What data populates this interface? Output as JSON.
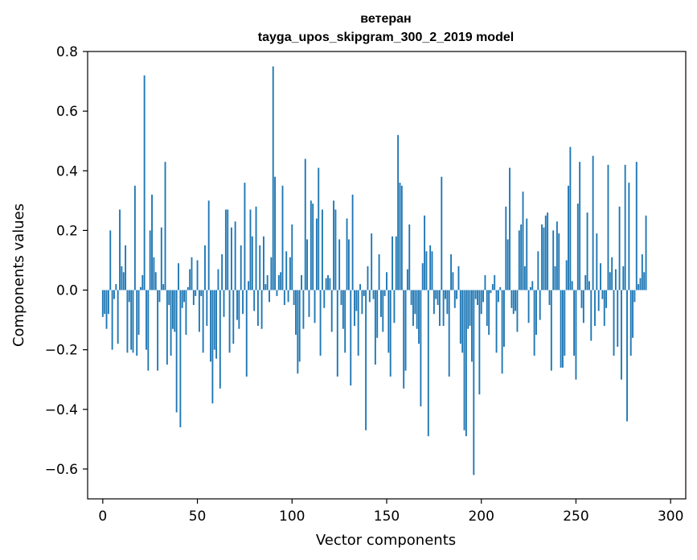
{
  "chart_data": {
    "type": "bar",
    "title_line1": "ветеран",
    "title_line2": "tayga_upos_skipgram_300_2_2019 model",
    "xlabel": "Vector components",
    "ylabel": "Components values",
    "xlim": [
      -8,
      308
    ],
    "ylim": [
      -0.7,
      0.8
    ],
    "xticks": [
      0,
      50,
      100,
      150,
      200,
      250,
      300
    ],
    "xtick_labels": [
      "0",
      "50",
      "100",
      "150",
      "200",
      "250",
      "300"
    ],
    "yticks": [
      -0.6,
      -0.4,
      -0.2,
      0.0,
      0.2,
      0.4,
      0.6,
      0.8
    ],
    "ytick_labels": [
      "−0.6",
      "−0.4",
      "−0.2",
      "0.0",
      "0.2",
      "0.4",
      "0.6",
      "0.8"
    ],
    "bar_color": "#1f77b4",
    "values": [
      -0.09,
      -0.08,
      -0.13,
      -0.08,
      0.2,
      -0.2,
      -0.03,
      0.02,
      -0.18,
      0.27,
      0.08,
      0.06,
      0.15,
      -0.21,
      -0.04,
      -0.2,
      -0.21,
      0.35,
      -0.22,
      -0.15,
      0.01,
      0.05,
      0.72,
      -0.2,
      -0.27,
      0.2,
      0.32,
      0.11,
      0.06,
      -0.27,
      -0.04,
      0.21,
      0.02,
      0.43,
      -0.25,
      -0.05,
      -0.22,
      -0.13,
      -0.14,
      -0.41,
      0.09,
      -0.46,
      -0.06,
      -0.04,
      -0.15,
      0.01,
      0.07,
      0.11,
      -0.05,
      -0.02,
      0.1,
      -0.14,
      -0.02,
      -0.21,
      0.15,
      -0.12,
      0.3,
      -0.24,
      -0.38,
      -0.2,
      -0.23,
      0.07,
      -0.33,
      0.12,
      -0.09,
      0.27,
      0.27,
      -0.21,
      0.21,
      -0.18,
      0.23,
      -0.1,
      -0.13,
      0.15,
      -0.08,
      0.36,
      -0.29,
      0.03,
      0.27,
      0.18,
      -0.07,
      0.28,
      -0.12,
      0.15,
      -0.13,
      0.18,
      0.02,
      0.05,
      -0.04,
      0.11,
      0.75,
      0.38,
      -0.02,
      0.05,
      0.06,
      0.35,
      -0.05,
      0.13,
      -0.04,
      0.11,
      0.22,
      -0.05,
      -0.15,
      -0.28,
      -0.24,
      0.05,
      -0.13,
      0.44,
      0.17,
      -0.09,
      0.3,
      0.29,
      -0.11,
      0.24,
      0.41,
      -0.22,
      0.27,
      -0.06,
      0.04,
      0.05,
      0.04,
      -0.14,
      0.3,
      0.27,
      -0.29,
      0.17,
      -0.05,
      -0.13,
      -0.21,
      0.24,
      0.17,
      -0.32,
      0.32,
      -0.12,
      -0.07,
      -0.22,
      0.02,
      -0.08,
      -0.02,
      -0.47,
      0.08,
      -0.04,
      0.19,
      -0.03,
      -0.25,
      -0.16,
      0.12,
      -0.09,
      -0.14,
      -0.02,
      0.06,
      -0.21,
      -0.29,
      0.18,
      -0.11,
      0.18,
      0.52,
      0.36,
      0.35,
      -0.33,
      -0.27,
      0.07,
      0.22,
      -0.05,
      -0.12,
      -0.08,
      -0.13,
      -0.18,
      -0.39,
      0.09,
      0.25,
      0.13,
      -0.49,
      0.15,
      0.13,
      -0.08,
      -0.03,
      -0.05,
      -0.12,
      0.38,
      -0.12,
      -0.03,
      -0.08,
      -0.29,
      0.12,
      0.06,
      -0.06,
      -0.03,
      0.08,
      -0.18,
      -0.21,
      -0.47,
      -0.49,
      -0.13,
      -0.12,
      -0.24,
      -0.62,
      -0.03,
      -0.05,
      -0.35,
      -0.08,
      -0.04,
      0.05,
      -0.12,
      -0.15,
      -0.01,
      0.02,
      0.05,
      -0.21,
      -0.04,
      0.01,
      -0.28,
      -0.19,
      0.28,
      0.17,
      0.41,
      -0.06,
      -0.08,
      -0.07,
      -0.14,
      0.2,
      0.22,
      0.33,
      0.08,
      0.24,
      -0.11,
      0.01,
      0.03,
      -0.22,
      -0.15,
      0.13,
      -0.1,
      0.22,
      0.21,
      0.25,
      0.26,
      -0.05,
      -0.27,
      0.2,
      0.08,
      0.23,
      0.19,
      -0.26,
      -0.26,
      -0.22,
      0.1,
      0.35,
      0.48,
      0.03,
      -0.22,
      -0.3,
      0.29,
      0.43,
      -0.06,
      -0.11,
      0.05,
      0.26,
      0.03,
      -0.17,
      0.45,
      -0.12,
      0.19,
      -0.07,
      0.09,
      -0.03,
      -0.12,
      -0.06,
      0.42,
      0.06,
      0.11,
      -0.22,
      0.07,
      -0.19,
      0.28,
      -0.3,
      0.08,
      0.42,
      -0.44,
      0.36,
      -0.22,
      -0.16,
      -0.04,
      0.43,
      0.02,
      0.04,
      0.12,
      0.06,
      0.25
    ]
  }
}
